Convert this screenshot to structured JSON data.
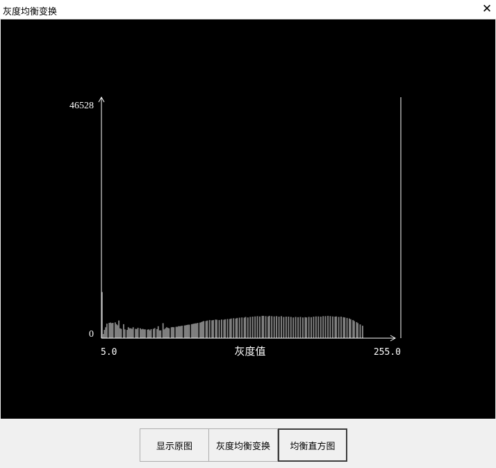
{
  "window": {
    "title": "灰度均衡变换",
    "close_icon": "close-icon"
  },
  "chart_data": {
    "type": "bar",
    "ymax_label": "46528",
    "ymin_label": "0",
    "xmin_label": "5.0",
    "xmax_label": "255.0",
    "xlabel": "灰度值",
    "xlim": [
      5,
      255
    ],
    "ylim": [
      0,
      46528
    ],
    "bar_color": "#808080",
    "axis_color": "#ffffff",
    "x": [
      5,
      6,
      7,
      8,
      9,
      11,
      12,
      13,
      14,
      16,
      17,
      18,
      19,
      20,
      21,
      23,
      24,
      26,
      27,
      28,
      29,
      30,
      31,
      33,
      34,
      35,
      37,
      38,
      39,
      40,
      41,
      43,
      44,
      45,
      46,
      48,
      49,
      51,
      52,
      53,
      54,
      56,
      57,
      58,
      59,
      60,
      61,
      63,
      64,
      65,
      67,
      68,
      69,
      70,
      71,
      72,
      74,
      75,
      76,
      77,
      78,
      80,
      81,
      82,
      83,
      84,
      85,
      87,
      88,
      89,
      90,
      92,
      93,
      95,
      97,
      98,
      100,
      101,
      103,
      105,
      107,
      108,
      110,
      112,
      113,
      115,
      117,
      118,
      120,
      122,
      124,
      125,
      127,
      129,
      131,
      133,
      135,
      137,
      139,
      140,
      142,
      144,
      145,
      147,
      149,
      151,
      153,
      155,
      157,
      159,
      161,
      163,
      165,
      167,
      169,
      171,
      173,
      175,
      176,
      178,
      180,
      182,
      184,
      186,
      188,
      190,
      192,
      194,
      196,
      198,
      200,
      201,
      203,
      205,
      207,
      208,
      210,
      212,
      213,
      215,
      216,
      218,
      219,
      221,
      223,
      255
    ],
    "values": [
      8900,
      800,
      1600,
      2100,
      2800,
      2950,
      3000,
      2900,
      2950,
      3050,
      2700,
      2500,
      3400,
      1900,
      1800,
      2700,
      1700,
      1600,
      2100,
      1900,
      1900,
      1800,
      2100,
      1800,
      1750,
      2000,
      1900,
      1700,
      1800,
      1700,
      1700,
      1650,
      1700,
      1500,
      1750,
      1800,
      1950,
      1750,
      2300,
      1500,
      1500,
      2900,
      1700,
      1900,
      2100,
      2000,
      1900,
      2100,
      2150,
      2100,
      2200,
      2200,
      2300,
      2300,
      2350,
      2400,
      2450,
      2500,
      2550,
      2600,
      2600,
      2700,
      2750,
      2800,
      2850,
      2850,
      2950,
      3000,
      3100,
      3200,
      3300,
      3300,
      3400,
      3500,
      3450,
      3500,
      3600,
      3550,
      3500,
      3600,
      3550,
      3650,
      3700,
      3700,
      3800,
      3850,
      3800,
      3900,
      3950,
      4000,
      3950,
      4100,
      4000,
      4100,
      4150,
      4200,
      4250,
      4200,
      4300,
      4300,
      4250,
      4200,
      4300,
      4250,
      4200,
      4250,
      4150,
      4250,
      4100,
      4150,
      4150,
      4100,
      4000,
      4100,
      4050,
      4100,
      4000,
      4050,
      4000,
      4100,
      4050,
      4150,
      4200,
      4200,
      4150,
      4250,
      4250,
      4300,
      4250,
      4200,
      4150,
      4200,
      4100,
      4150,
      4050,
      4000,
      3900,
      3800,
      3650,
      3500,
      3300,
      3100,
      2900,
      2650,
      2400,
      46528
    ]
  },
  "buttons": {
    "show_original": "显示原图",
    "equalize": "灰度均衡变换",
    "histogram": "均衡直方图"
  }
}
